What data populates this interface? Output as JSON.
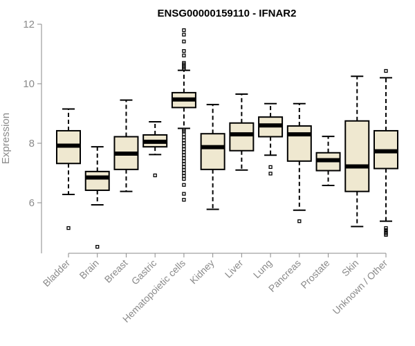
{
  "chart_data": {
    "type": "box",
    "title": "ENSG00000159110 - IFNAR2",
    "ylabel": "Expression",
    "xlabel": "",
    "ylim": [
      4.3,
      12.1
    ],
    "yticks": [
      6,
      8,
      10,
      12
    ],
    "box_fill": "#efe8d0",
    "box_stroke": "#000000",
    "median_color": "#000000",
    "categories": [
      "Bladder",
      "Brain",
      "Breast",
      "Gastric",
      "Hematopoietic cells",
      "Kidney",
      "Liver",
      "Lung",
      "Pancreas",
      "Prostate",
      "Skin",
      "Unknown / Other"
    ],
    "boxes": [
      {
        "name": "Bladder",
        "whisker_low": 6.28,
        "q1": 7.32,
        "median": 7.92,
        "q3": 8.42,
        "whisker_high": 9.15,
        "outliers": [
          5.15
        ]
      },
      {
        "name": "Brain",
        "whisker_low": 5.93,
        "q1": 6.42,
        "median": 6.85,
        "q3": 7.05,
        "whisker_high": 7.88,
        "outliers": [
          4.52
        ]
      },
      {
        "name": "Breast",
        "whisker_low": 6.38,
        "q1": 7.12,
        "median": 7.65,
        "q3": 8.22,
        "whisker_high": 9.45,
        "outliers": []
      },
      {
        "name": "Gastric",
        "whisker_low": 7.62,
        "q1": 7.88,
        "median": 8.05,
        "q3": 8.28,
        "whisker_high": 8.72,
        "outliers": [
          6.92
        ]
      },
      {
        "name": "Hematopoietic cells",
        "whisker_low": 8.5,
        "q1": 9.2,
        "median": 9.47,
        "q3": 9.7,
        "whisker_high": 10.45,
        "outliers": [
          11.8,
          11.65,
          11.42,
          11.1,
          10.95,
          10.7,
          10.65,
          10.6,
          10.55,
          10.5,
          8.45,
          8.4,
          8.3,
          8.2,
          8.1,
          8.0,
          7.9,
          7.8,
          7.7,
          7.6,
          7.5,
          7.4,
          7.3,
          7.2,
          7.1,
          7.0,
          6.9,
          6.8,
          6.6,
          6.3,
          6.1
        ]
      },
      {
        "name": "Kidney",
        "whisker_low": 5.78,
        "q1": 7.12,
        "median": 7.87,
        "q3": 8.32,
        "whisker_high": 9.3,
        "outliers": []
      },
      {
        "name": "Liver",
        "whisker_low": 7.1,
        "q1": 7.75,
        "median": 8.3,
        "q3": 8.68,
        "whisker_high": 9.65,
        "outliers": []
      },
      {
        "name": "Lung",
        "whisker_low": 7.6,
        "q1": 8.22,
        "median": 8.6,
        "q3": 8.88,
        "whisker_high": 9.33,
        "outliers": [
          7.2,
          6.98
        ]
      },
      {
        "name": "Pancreas",
        "whisker_low": 5.75,
        "q1": 7.4,
        "median": 8.3,
        "q3": 8.58,
        "whisker_high": 9.33,
        "outliers": [
          5.38
        ]
      },
      {
        "name": "Prostate",
        "whisker_low": 6.58,
        "q1": 7.08,
        "median": 7.43,
        "q3": 7.68,
        "whisker_high": 8.23,
        "outliers": []
      },
      {
        "name": "Skin",
        "whisker_low": 5.2,
        "q1": 6.38,
        "median": 7.22,
        "q3": 8.75,
        "whisker_high": 10.25,
        "outliers": []
      },
      {
        "name": "Unknown / Other",
        "whisker_low": 5.38,
        "q1": 7.15,
        "median": 7.73,
        "q3": 8.42,
        "whisker_high": 10.2,
        "outliers": [
          10.43,
          5.15,
          5.08,
          5.02,
          4.97,
          4.92
        ]
      }
    ]
  }
}
